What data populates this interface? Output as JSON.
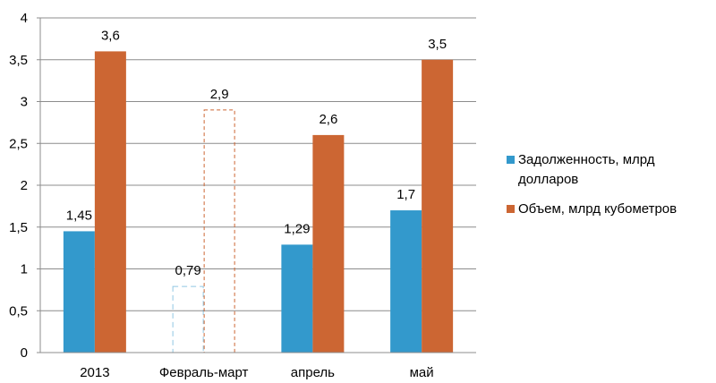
{
  "chart_data": {
    "type": "bar",
    "categories": [
      "2013",
      "Февраль-март",
      "апрель",
      "май"
    ],
    "ylim": [
      0,
      4
    ],
    "yticks": [
      "0",
      "0,5",
      "1",
      "1,5",
      "2",
      "2,5",
      "3",
      "3,5",
      "4"
    ],
    "yticks_values": [
      0,
      0.5,
      1,
      1.5,
      2,
      2.5,
      3,
      3.5,
      4
    ],
    "grid": true,
    "legend_position": "right",
    "series": [
      {
        "name": "Задолженность, млрд долларов",
        "name_lines": [
          "Задолженность, млрд",
          "долларов"
        ],
        "color": "#3399CC",
        "values": [
          1.45,
          0.79,
          1.29,
          1.7
        ],
        "labels": [
          "1,45",
          "0,79",
          "1,29",
          "1,7"
        ],
        "estimated": [
          false,
          true,
          false,
          false
        ]
      },
      {
        "name": "Объем, млрд кубометров",
        "name_lines": [
          "Объем, млрд кубометров"
        ],
        "color": "#CC6633",
        "values": [
          3.6,
          2.9,
          2.6,
          3.5
        ],
        "labels": [
          "3,6",
          "2,9",
          "2,6",
          "3,5"
        ],
        "estimated": [
          false,
          true,
          false,
          false
        ]
      }
    ]
  }
}
